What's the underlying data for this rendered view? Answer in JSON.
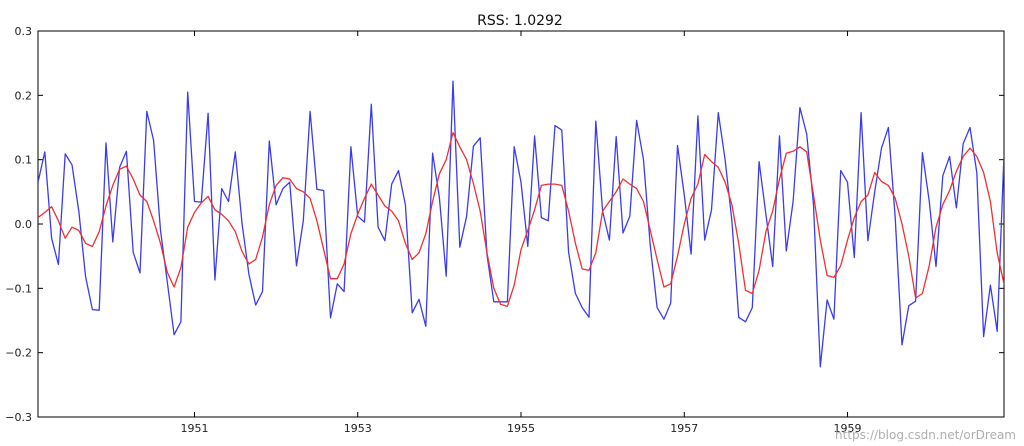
{
  "watermark": "https://blog.csdn.net/orDream",
  "chart_data": {
    "type": "line",
    "title": "RSS: 1.0292",
    "xlabel": "",
    "ylabel": "",
    "x_start": "1949-02",
    "x_freq": "monthly",
    "xlim": [
      "1949-02",
      "1960-12"
    ],
    "ylim": [
      -0.3,
      0.3
    ],
    "yticks": [
      -0.3,
      -0.2,
      -0.1,
      0.0,
      0.1,
      0.2,
      0.3
    ],
    "ytick_labels": [
      "−0.3",
      "−0.2",
      "−0.1",
      "0.0",
      "0.1",
      "0.2",
      "0.3"
    ],
    "xticks": [
      "1951",
      "1953",
      "1955",
      "1957",
      "1959"
    ],
    "grid": false,
    "series": [
      {
        "color": "#3b3bf0",
        "values": [
          0.065,
          0.112,
          -0.022,
          -0.063,
          0.109,
          0.092,
          0.02,
          -0.082,
          -0.133,
          -0.134,
          0.126,
          -0.028,
          0.088,
          0.113,
          -0.044,
          -0.076,
          0.175,
          0.13,
          -0.01,
          -0.09,
          -0.172,
          -0.152,
          0.205,
          0.035,
          0.034,
          0.172,
          -0.087,
          0.055,
          0.035,
          0.112,
          0.0,
          -0.078,
          -0.126,
          -0.105,
          0.129,
          0.03,
          0.055,
          0.065,
          -0.065,
          0.005,
          0.175,
          0.054,
          0.052,
          -0.146,
          -0.093,
          -0.105,
          0.12,
          0.012,
          0.003,
          0.186,
          -0.005,
          -0.026,
          0.062,
          0.083,
          0.03,
          -0.138,
          -0.117,
          -0.159,
          0.11,
          0.041,
          -0.081,
          0.222,
          -0.036,
          0.012,
          0.121,
          0.134,
          -0.048,
          -0.121,
          -0.121,
          -0.121,
          0.12,
          0.065,
          -0.035,
          0.137,
          0.01,
          0.005,
          0.153,
          0.146,
          -0.044,
          -0.108,
          -0.13,
          -0.145,
          0.16,
          0.02,
          -0.025,
          0.136,
          -0.014,
          0.012,
          0.161,
          0.1,
          -0.034,
          -0.13,
          -0.148,
          -0.123,
          0.122,
          0.045,
          -0.047,
          0.168,
          -0.025,
          0.022,
          0.173,
          0.1,
          0.005,
          -0.145,
          -0.152,
          -0.13,
          0.097,
          0.015,
          -0.066,
          0.137,
          -0.042,
          0.035,
          0.181,
          0.14,
          0.03,
          -0.222,
          -0.118,
          -0.148,
          0.083,
          0.065,
          -0.052,
          0.173,
          -0.026,
          0.05,
          0.118,
          0.15,
          0.01,
          -0.188,
          -0.127,
          -0.12,
          0.111,
          0.036,
          -0.066,
          0.075,
          0.105,
          0.025,
          0.125,
          0.15,
          0.08,
          -0.175,
          -0.095,
          -0.167,
          0.108
        ]
      },
      {
        "color": "#f03030",
        "values": [
          0.01,
          0.018,
          0.027,
          0.005,
          -0.022,
          -0.005,
          -0.01,
          -0.03,
          -0.035,
          -0.012,
          0.028,
          0.06,
          0.085,
          0.09,
          0.07,
          0.045,
          0.035,
          0.005,
          -0.03,
          -0.075,
          -0.098,
          -0.068,
          -0.005,
          0.018,
          0.033,
          0.043,
          0.022,
          0.015,
          0.005,
          -0.012,
          -0.043,
          -0.062,
          -0.055,
          -0.02,
          0.03,
          0.06,
          0.072,
          0.07,
          0.055,
          0.05,
          0.04,
          0.005,
          -0.04,
          -0.085,
          -0.085,
          -0.062,
          -0.015,
          0.015,
          0.04,
          0.062,
          0.045,
          0.028,
          0.02,
          0.005,
          -0.03,
          -0.055,
          -0.045,
          -0.015,
          0.035,
          0.078,
          0.1,
          0.142,
          0.12,
          0.1,
          0.063,
          0.02,
          -0.045,
          -0.1,
          -0.125,
          -0.128,
          -0.095,
          -0.04,
          -0.01,
          0.022,
          0.06,
          0.062,
          0.062,
          0.06,
          0.02,
          -0.03,
          -0.07,
          -0.072,
          -0.045,
          0.02,
          0.035,
          0.05,
          0.07,
          0.062,
          0.055,
          0.035,
          -0.01,
          -0.055,
          -0.098,
          -0.093,
          -0.05,
          0.0,
          0.04,
          0.062,
          0.108,
          0.097,
          0.088,
          0.065,
          0.03,
          -0.03,
          -0.103,
          -0.108,
          -0.072,
          -0.012,
          0.02,
          0.07,
          0.11,
          0.113,
          0.12,
          0.112,
          0.045,
          -0.025,
          -0.08,
          -0.083,
          -0.065,
          -0.025,
          0.01,
          0.035,
          0.045,
          0.08,
          0.066,
          0.06,
          0.04,
          0.0,
          -0.05,
          -0.115,
          -0.108,
          -0.065,
          -0.005,
          0.03,
          0.052,
          0.082,
          0.105,
          0.118,
          0.105,
          0.08,
          0.035,
          -0.045,
          -0.093,
          -0.093,
          -0.065,
          -0.01
        ]
      }
    ]
  }
}
